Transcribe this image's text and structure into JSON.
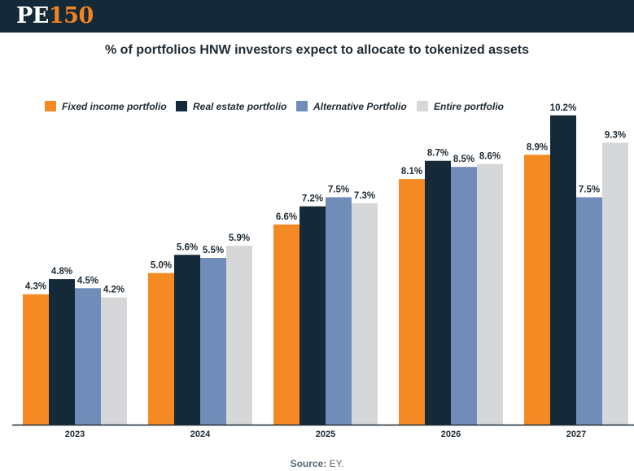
{
  "header": {
    "logo_pe": "PE",
    "logo_num": "150",
    "logo_pe_color": "#ffffff",
    "logo_num_color": "#f58220",
    "bar_color": "#142a38"
  },
  "source": {
    "label": "Source:",
    "value": "EY."
  },
  "chart_data": {
    "type": "bar",
    "title": "% of portfolios HNW investors expect to allocate to tokenized assets",
    "xlabel": "",
    "ylabel": "",
    "ylim": [
      0,
      11
    ],
    "grid": false,
    "legend_position": "top-left",
    "categories": [
      "2023",
      "2024",
      "2025",
      "2026",
      "2027"
    ],
    "series": [
      {
        "name": "Fixed income portfolio",
        "color": "#f58a25",
        "values": [
          4.3,
          5.0,
          6.6,
          8.1,
          8.9
        ],
        "labels": [
          "4.3%",
          "5.0%",
          "6.6%",
          "8.1%",
          "8.9%"
        ]
      },
      {
        "name": "Real estate portfolio",
        "color": "#142a38",
        "values": [
          4.8,
          5.6,
          7.2,
          8.7,
          10.2
        ],
        "labels": [
          "4.8%",
          "5.6%",
          "7.2%",
          "8.7%",
          "10.2%"
        ]
      },
      {
        "name": "Alternative Portfolio",
        "color": "#6f8db8",
        "values": [
          4.5,
          5.5,
          7.5,
          8.5,
          7.5
        ],
        "labels": [
          "4.5%",
          "5.5%",
          "7.5%",
          "8.5%",
          "7.5%"
        ]
      },
      {
        "name": "Entire portfolio",
        "color": "#d6d7d9",
        "values": [
          4.2,
          5.9,
          7.3,
          8.6,
          9.3
        ],
        "labels": [
          "4.2%",
          "5.9%",
          "7.3%",
          "8.6%",
          "9.3%"
        ]
      }
    ]
  }
}
